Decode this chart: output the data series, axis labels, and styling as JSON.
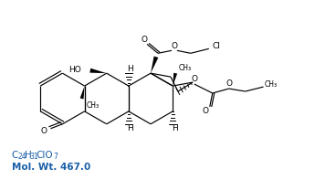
{
  "background_color": "#ffffff",
  "formula_color": "#1a5fa8",
  "line_color": "#000000",
  "figsize": [
    3.45,
    2.08
  ],
  "dpi": 100,
  "formula_main": "C",
  "formula_sub1": "24",
  "formula_rest1": "H",
  "formula_sub2": "31",
  "formula_rest2": "ClO",
  "formula_sub3": "7",
  "mol_wt": "Mol. Wt. 467.0"
}
